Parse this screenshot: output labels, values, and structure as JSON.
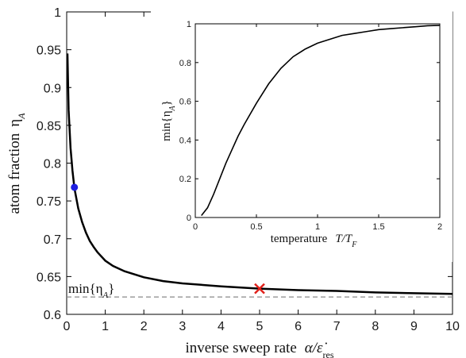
{
  "chart_data": [
    {
      "type": "line",
      "role": "main",
      "xlabel_text": "inverse sweep rate",
      "xlabel_math": "α/ε̇",
      "xlabel_sub": "res",
      "ylabel_text": "atom fraction",
      "ylabel_math": "η",
      "ylabel_sub": "A",
      "xlim": [
        0,
        10
      ],
      "ylim": [
        0.6,
        1.0
      ],
      "xticks": [
        "0",
        "1",
        "2",
        "3",
        "4",
        "5",
        "6",
        "7",
        "8",
        "9",
        "10"
      ],
      "yticks": [
        "0.6",
        "0.65",
        "0.7",
        "0.75",
        "0.8",
        "0.85",
        "0.9",
        "0.95",
        "1"
      ],
      "series": [
        {
          "x": [
            0.02,
            0.05,
            0.1,
            0.15,
            0.2,
            0.3,
            0.4,
            0.5,
            0.6,
            0.7,
            0.8,
            1.0,
            1.2,
            1.5,
            2.0,
            2.5,
            3.0,
            4.0,
            5.0,
            6.0,
            7.0,
            8.0,
            9.0,
            10.0
          ],
          "y": [
            0.945,
            0.87,
            0.82,
            0.79,
            0.767,
            0.74,
            0.722,
            0.708,
            0.697,
            0.689,
            0.682,
            0.671,
            0.664,
            0.657,
            0.649,
            0.644,
            0.641,
            0.637,
            0.634,
            0.632,
            0.631,
            0.629,
            0.628,
            0.627
          ]
        }
      ],
      "reference_line": {
        "y": 0.623,
        "style": "dashed",
        "label": "min{η",
        "label_sub": "A",
        "label_close": "}"
      },
      "markers": [
        {
          "x": 0.2,
          "y": 0.768,
          "shape": "dot",
          "color": "#1f1fe0"
        },
        {
          "x": 5.0,
          "y": 0.634,
          "shape": "cross",
          "color": "#e0201a"
        }
      ]
    },
    {
      "type": "line",
      "role": "inset",
      "xlabel_text": "temperature",
      "xlabel_math": "T/T",
      "xlabel_sub": "F",
      "ylabel_math": "min{η",
      "ylabel_sub": "A",
      "ylabel_close": "}",
      "xlim": [
        0,
        2
      ],
      "ylim": [
        0,
        1
      ],
      "xticks": [
        "0",
        "0.5",
        "1",
        "1.5",
        "2"
      ],
      "yticks": [
        "0",
        "0.2",
        "0.4",
        "0.6",
        "0.8",
        "1"
      ],
      "series": [
        {
          "x": [
            0.05,
            0.1,
            0.15,
            0.2,
            0.25,
            0.3,
            0.35,
            0.4,
            0.5,
            0.6,
            0.7,
            0.8,
            0.9,
            1.0,
            1.1,
            1.2,
            1.3,
            1.4,
            1.5,
            1.6,
            1.7,
            1.8,
            1.9,
            2.0
          ],
          "y": [
            0.01,
            0.05,
            0.12,
            0.2,
            0.28,
            0.35,
            0.42,
            0.48,
            0.59,
            0.69,
            0.77,
            0.83,
            0.87,
            0.9,
            0.92,
            0.94,
            0.95,
            0.96,
            0.97,
            0.975,
            0.98,
            0.985,
            0.99,
            0.992
          ]
        }
      ]
    }
  ]
}
